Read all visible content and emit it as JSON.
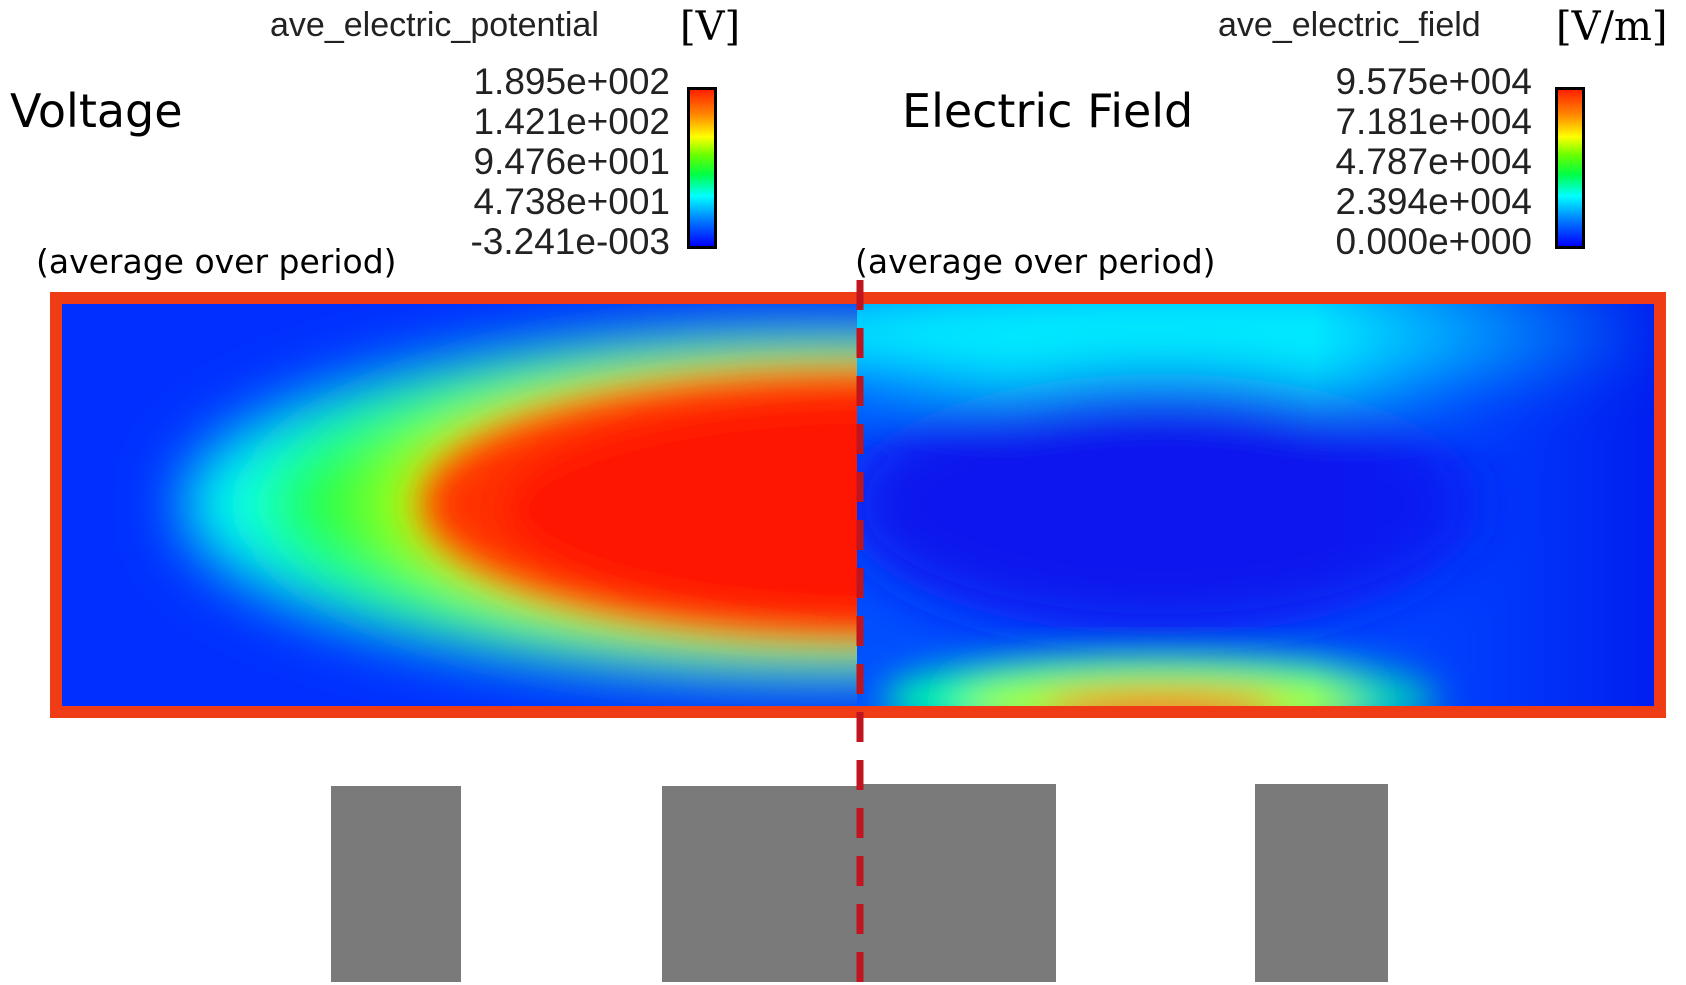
{
  "legends": {
    "left": {
      "title": "ave_electric_potential",
      "unit": "[V]",
      "ticks": [
        "1.895e+002",
        "1.421e+002",
        "9.476e+001",
        "4.738e+001",
        "-3.241e-003"
      ]
    },
    "right": {
      "title": "ave_electric_field",
      "unit": "[V/m]",
      "ticks": [
        "9.575e+004",
        "7.181e+004",
        "4.787e+004",
        "2.394e+004",
        "0.000e+000"
      ]
    }
  },
  "labels": {
    "voltage": "Voltage",
    "electric_field": "Electric Field",
    "left_note": "(average over period)",
    "right_note": "(average over period)"
  },
  "colors": {
    "frame": "#f03c14",
    "divider": "#c0141e",
    "electrode": "#7a7a7a"
  }
}
